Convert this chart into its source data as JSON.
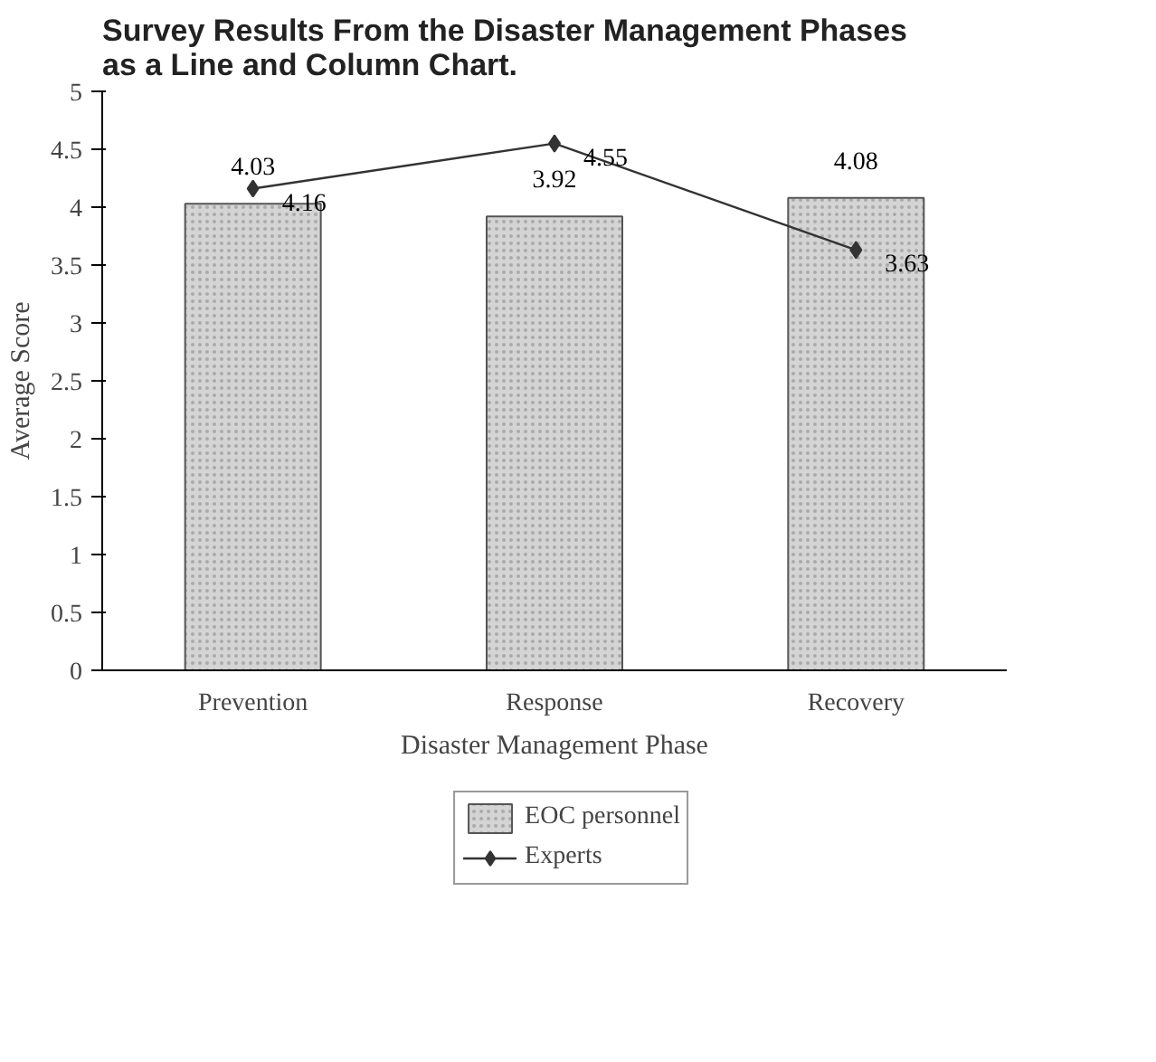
{
  "chart_data": {
    "type": "bar",
    "title": "Survey Results From the Disaster Management Phases\nas a Line and Column Chart.",
    "xlabel": "Disaster Management Phase",
    "ylabel": "Average Score",
    "categories": [
      "Prevention",
      "Response",
      "Recovery"
    ],
    "series": [
      {
        "name": "EOC personnel",
        "color": "#d4d4d4",
        "values": [
          4.03,
          3.92,
          4.08
        ]
      },
      {
        "name": "Experts",
        "type": "line",
        "color": "#333333",
        "values": [
          4.16,
          4.55,
          3.63
        ]
      }
    ],
    "ylim": [
      0,
      5
    ],
    "yticks": [
      0,
      0.5,
      1,
      1.5,
      2,
      2.5,
      3,
      3.5,
      4,
      4.5,
      5
    ],
    "data_labels": true,
    "legend": "bottom",
    "marker": "diamond",
    "line_style": "solid",
    "grid": false
  }
}
